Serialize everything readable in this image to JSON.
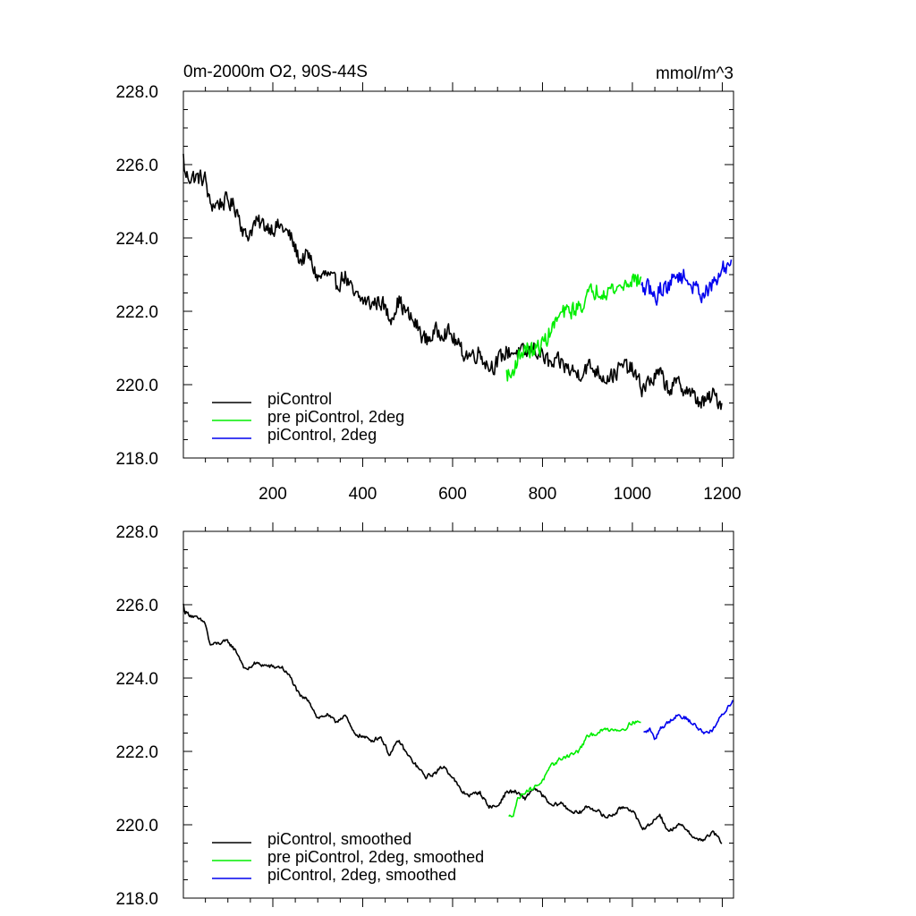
{
  "chart_data": [
    {
      "type": "line",
      "title": "0m-2000m O2, 90S-44S",
      "units": "mmol/m^3",
      "xlabel": "",
      "ylabel": "",
      "xlim": [
        1,
        1225
      ],
      "ylim": [
        218,
        228
      ],
      "yticks": [
        "218.0",
        "220.0",
        "222.0",
        "224.0",
        "226.0",
        "228.0"
      ],
      "xticks": [
        "200",
        "400",
        "600",
        "800",
        "1000",
        "1200"
      ],
      "show_xtick_labels": true,
      "grid": false,
      "legend_position": "bottom-left",
      "noise": 0.22,
      "series": [
        {
          "name": "piControl",
          "color": "#000000",
          "x_start": 1,
          "x_end": 1200,
          "anchors": [
            [
              1,
              226.2
            ],
            [
              5,
              225.7
            ],
            [
              50,
              225.6
            ],
            [
              60,
              224.9
            ],
            [
              100,
              225.0
            ],
            [
              120,
              224.8
            ],
            [
              140,
              224.0
            ],
            [
              160,
              224.4
            ],
            [
              200,
              224.3
            ],
            [
              220,
              224.3
            ],
            [
              240,
              224.0
            ],
            [
              260,
              223.4
            ],
            [
              280,
              223.5
            ],
            [
              300,
              222.9
            ],
            [
              320,
              223.0
            ],
            [
              340,
              222.7
            ],
            [
              360,
              223.0
            ],
            [
              380,
              222.4
            ],
            [
              400,
              222.3
            ],
            [
              420,
              222.2
            ],
            [
              440,
              222.3
            ],
            [
              460,
              221.8
            ],
            [
              480,
              222.3
            ],
            [
              500,
              221.9
            ],
            [
              520,
              221.6
            ],
            [
              540,
              221.2
            ],
            [
              560,
              221.4
            ],
            [
              580,
              221.5
            ],
            [
              600,
              221.3
            ],
            [
              620,
              220.9
            ],
            [
              640,
              220.8
            ],
            [
              660,
              220.9
            ],
            [
              680,
              220.5
            ],
            [
              700,
              220.6
            ],
            [
              720,
              220.9
            ],
            [
              740,
              220.9
            ],
            [
              760,
              220.8
            ],
            [
              780,
              221.0
            ],
            [
              800,
              220.8
            ],
            [
              820,
              220.5
            ],
            [
              840,
              220.6
            ],
            [
              860,
              220.4
            ],
            [
              880,
              220.3
            ],
            [
              900,
              220.5
            ],
            [
              920,
              220.4
            ],
            [
              940,
              220.2
            ],
            [
              960,
              220.3
            ],
            [
              980,
              220.5
            ],
            [
              1000,
              220.4
            ],
            [
              1020,
              219.9
            ],
            [
              1040,
              220.1
            ],
            [
              1060,
              220.3
            ],
            [
              1080,
              219.9
            ],
            [
              1100,
              220.0
            ],
            [
              1120,
              219.9
            ],
            [
              1140,
              219.6
            ],
            [
              1160,
              219.5
            ],
            [
              1180,
              219.7
            ],
            [
              1200,
              219.5
            ]
          ]
        },
        {
          "name": "pre piControl, 2deg",
          "color": "#00ee00",
          "x_start": 720,
          "x_end": 1020,
          "anchors": [
            [
              720,
              220.3
            ],
            [
              730,
              220.2
            ],
            [
              740,
              220.6
            ],
            [
              760,
              221.0
            ],
            [
              780,
              220.9
            ],
            [
              800,
              221.1
            ],
            [
              820,
              221.5
            ],
            [
              840,
              221.9
            ],
            [
              860,
              222.0
            ],
            [
              880,
              222.1
            ],
            [
              900,
              222.4
            ],
            [
              920,
              222.6
            ],
            [
              940,
              222.6
            ],
            [
              960,
              222.6
            ],
            [
              980,
              222.7
            ],
            [
              1000,
              222.9
            ],
            [
              1020,
              222.8
            ]
          ]
        },
        {
          "name": "piControl, 2deg",
          "color": "#0000ee",
          "x_start": 1020,
          "x_end": 1220,
          "anchors": [
            [
              1020,
              222.6
            ],
            [
              1040,
              222.6
            ],
            [
              1050,
              222.3
            ],
            [
              1060,
              222.6
            ],
            [
              1080,
              222.7
            ],
            [
              1100,
              223.0
            ],
            [
              1120,
              222.9
            ],
            [
              1140,
              222.6
            ],
            [
              1160,
              222.5
            ],
            [
              1180,
              222.7
            ],
            [
              1200,
              223.1
            ],
            [
              1220,
              223.4
            ]
          ]
        }
      ]
    },
    {
      "type": "line",
      "title": "",
      "xlabel": "",
      "ylabel": "",
      "xlim": [
        1,
        1225
      ],
      "ylim": [
        218,
        228
      ],
      "yticks": [
        "218.0",
        "220.0",
        "222.0",
        "224.0",
        "226.0",
        "228.0"
      ],
      "show_xtick_labels": false,
      "grid": false,
      "legend_position": "bottom-left",
      "noise": 0.05,
      "series": [
        {
          "name": "piControl, smoothed",
          "color": "#000000",
          "x_start": 1,
          "x_end": 1200,
          "anchors": [
            [
              1,
              226.0
            ],
            [
              5,
              225.8
            ],
            [
              50,
              225.5
            ],
            [
              60,
              224.9
            ],
            [
              100,
              225.0
            ],
            [
              120,
              224.7
            ],
            [
              140,
              224.2
            ],
            [
              160,
              224.4
            ],
            [
              200,
              224.3
            ],
            [
              220,
              224.3
            ],
            [
              240,
              224.0
            ],
            [
              260,
              223.5
            ],
            [
              280,
              223.4
            ],
            [
              300,
              222.9
            ],
            [
              320,
              223.0
            ],
            [
              340,
              222.8
            ],
            [
              360,
              223.0
            ],
            [
              380,
              222.5
            ],
            [
              400,
              222.4
            ],
            [
              420,
              222.3
            ],
            [
              440,
              222.4
            ],
            [
              460,
              221.9
            ],
            [
              480,
              222.3
            ],
            [
              500,
              221.9
            ],
            [
              520,
              221.6
            ],
            [
              540,
              221.3
            ],
            [
              560,
              221.4
            ],
            [
              580,
              221.6
            ],
            [
              600,
              221.3
            ],
            [
              620,
              220.9
            ],
            [
              640,
              220.8
            ],
            [
              660,
              220.9
            ],
            [
              680,
              220.5
            ],
            [
              700,
              220.5
            ],
            [
              720,
              220.9
            ],
            [
              740,
              220.9
            ],
            [
              760,
              220.7
            ],
            [
              780,
              221.0
            ],
            [
              800,
              220.8
            ],
            [
              820,
              220.5
            ],
            [
              840,
              220.6
            ],
            [
              860,
              220.4
            ],
            [
              880,
              220.3
            ],
            [
              900,
              220.5
            ],
            [
              920,
              220.4
            ],
            [
              940,
              220.2
            ],
            [
              960,
              220.3
            ],
            [
              980,
              220.5
            ],
            [
              1000,
              220.4
            ],
            [
              1020,
              219.9
            ],
            [
              1040,
              220.0
            ],
            [
              1060,
              220.3
            ],
            [
              1080,
              219.8
            ],
            [
              1100,
              220.0
            ],
            [
              1120,
              219.9
            ],
            [
              1140,
              219.6
            ],
            [
              1160,
              219.6
            ],
            [
              1180,
              219.8
            ],
            [
              1200,
              219.5
            ]
          ]
        },
        {
          "name": "pre piControl, 2deg, smoothed",
          "color": "#00ee00",
          "x_start": 725,
          "x_end": 1020,
          "anchors": [
            [
              725,
              220.2
            ],
            [
              735,
              220.3
            ],
            [
              745,
              220.7
            ],
            [
              760,
              220.9
            ],
            [
              780,
              221.0
            ],
            [
              800,
              221.2
            ],
            [
              820,
              221.6
            ],
            [
              840,
              221.8
            ],
            [
              860,
              221.9
            ],
            [
              880,
              222.0
            ],
            [
              900,
              222.4
            ],
            [
              920,
              222.5
            ],
            [
              940,
              222.6
            ],
            [
              960,
              222.6
            ],
            [
              980,
              222.6
            ],
            [
              1000,
              222.8
            ],
            [
              1020,
              222.8
            ]
          ]
        },
        {
          "name": "piControl, 2deg, smoothed",
          "color": "#0000ee",
          "x_start": 1025,
          "x_end": 1225,
          "anchors": [
            [
              1025,
              222.5
            ],
            [
              1040,
              222.6
            ],
            [
              1050,
              222.3
            ],
            [
              1060,
              222.6
            ],
            [
              1080,
              222.8
            ],
            [
              1100,
              223.0
            ],
            [
              1120,
              222.9
            ],
            [
              1140,
              222.7
            ],
            [
              1160,
              222.5
            ],
            [
              1180,
              222.6
            ],
            [
              1200,
              223.0
            ],
            [
              1225,
              223.4
            ]
          ]
        }
      ]
    }
  ]
}
